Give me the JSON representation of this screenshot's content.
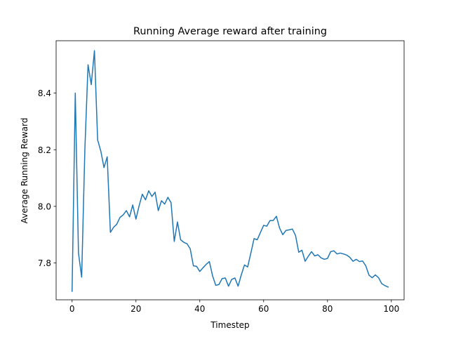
{
  "chart_data": {
    "type": "line",
    "title": "Running Average reward after training",
    "xlabel": "Timestep",
    "ylabel": "Average Running Reward",
    "xlim": [
      -5,
      104
    ],
    "ylim": [
      7.67,
      8.585
    ],
    "xticks": [
      0,
      20,
      40,
      60,
      80,
      100
    ],
    "xtick_labels": [
      "0",
      "20",
      "40",
      "60",
      "80",
      "100"
    ],
    "yticks": [
      7.8,
      8.0,
      8.2,
      8.4
    ],
    "ytick_labels": [
      "7.8",
      "8.0",
      "8.2",
      "8.4"
    ],
    "grid": false,
    "line_color": "#1f77b4",
    "series": [
      {
        "x": [
          0,
          1,
          2,
          3,
          4,
          5,
          6,
          7,
          8,
          9,
          10,
          11,
          12,
          13,
          14,
          15,
          16,
          17,
          18,
          19,
          20,
          21,
          22,
          23,
          24,
          25,
          26,
          27,
          28,
          29,
          30,
          31,
          32,
          33,
          34,
          35,
          36,
          37,
          38,
          39,
          40,
          41,
          42,
          43,
          44,
          45,
          46,
          47,
          48,
          49,
          50,
          51,
          52,
          53,
          54,
          55,
          56,
          57,
          58,
          59,
          60,
          61,
          62,
          63,
          64,
          65,
          66,
          67,
          68,
          69,
          70,
          71,
          72,
          73,
          74,
          75,
          76,
          77,
          78,
          79,
          80,
          81,
          82,
          83,
          84,
          85,
          86,
          87,
          88,
          89,
          90,
          91,
          92,
          93,
          94,
          95,
          96,
          97,
          98,
          99
        ],
        "y": [
          7.7,
          8.4,
          7.835,
          7.75,
          8.2,
          8.5,
          8.43,
          8.55,
          8.235,
          8.195,
          8.137,
          8.175,
          7.908,
          7.926,
          7.937,
          7.961,
          7.97,
          7.985,
          7.963,
          8.005,
          7.955,
          8.002,
          8.043,
          8.023,
          8.055,
          8.035,
          8.05,
          7.985,
          8.02,
          8.008,
          8.032,
          8.013,
          7.876,
          7.945,
          7.882,
          7.873,
          7.868,
          7.85,
          7.79,
          7.788,
          7.77,
          7.783,
          7.795,
          7.805,
          7.755,
          7.721,
          7.724,
          7.745,
          7.747,
          7.718,
          7.742,
          7.747,
          7.718,
          7.758,
          7.793,
          7.786,
          7.835,
          7.886,
          7.882,
          7.908,
          7.933,
          7.93,
          7.95,
          7.95,
          7.965,
          7.923,
          7.9,
          7.915,
          7.917,
          7.92,
          7.897,
          7.838,
          7.845,
          7.806,
          7.824,
          7.84,
          7.825,
          7.829,
          7.818,
          7.813,
          7.816,
          7.84,
          7.843,
          7.832,
          7.835,
          7.832,
          7.828,
          7.82,
          7.806,
          7.813,
          7.805,
          7.807,
          7.79,
          7.757,
          7.748,
          7.758,
          7.748,
          7.727,
          7.72,
          7.715
        ]
      }
    ]
  }
}
